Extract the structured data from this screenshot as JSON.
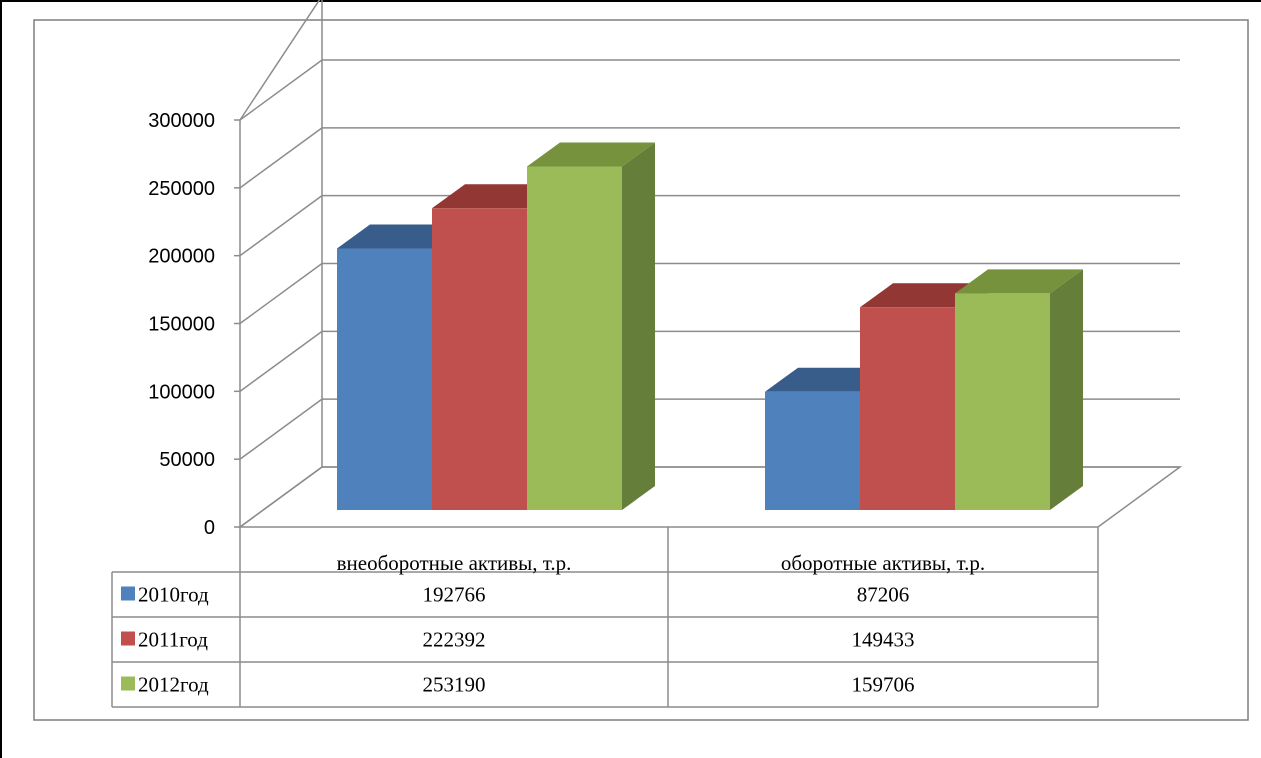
{
  "chart_data": {
    "type": "bar",
    "title": "",
    "xlabel": "",
    "ylabel": "",
    "ylim": [
      0,
      300000
    ],
    "yticks": [
      0,
      50000,
      100000,
      150000,
      200000,
      250000,
      300000
    ],
    "grid": true,
    "style": "3d-clustered-column",
    "legend": "data-table-below",
    "categories": [
      "внеоборотные активы, т.р.",
      "оборотные активы, т.р."
    ],
    "series": [
      {
        "name": "2010год",
        "values": [
          192766,
          87206
        ],
        "color": "#4f81bd",
        "top_color": "#385d8a",
        "side_color": "#3a6190"
      },
      {
        "name": "2011год",
        "values": [
          222392,
          149433
        ],
        "color": "#c0504d",
        "top_color": "#923734",
        "side_color": "#8c3836"
      },
      {
        "name": "2012год",
        "values": [
          253190,
          159706
        ],
        "color": "#9bbb59",
        "top_color": "#76923c",
        "side_color": "#657e3a"
      }
    ],
    "data_table": {
      "rows": [
        {
          "label": "2010год",
          "cells": [
            "192766",
            "87206"
          ]
        },
        {
          "label": "2011год",
          "cells": [
            "222392",
            "149433"
          ]
        },
        {
          "label": "2012год",
          "cells": [
            "253190",
            "159706"
          ]
        }
      ]
    }
  }
}
